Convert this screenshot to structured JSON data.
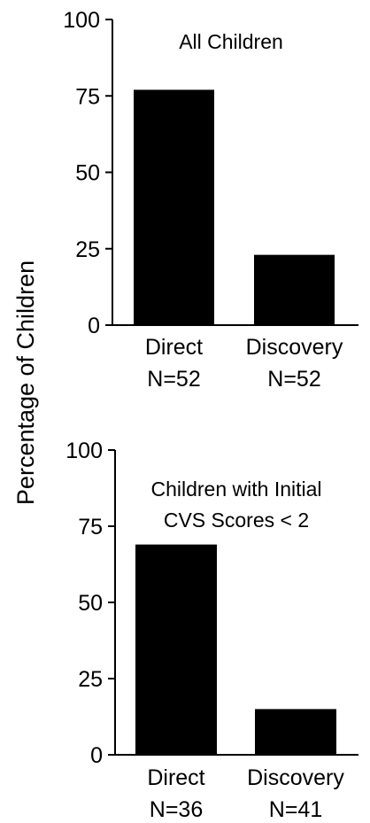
{
  "ylabel": "Percentage of Children",
  "chart_data": [
    {
      "type": "bar",
      "title": "All Children",
      "title_lines": [
        "All Children"
      ],
      "categories": [
        "Direct",
        "Discovery"
      ],
      "n_labels": [
        "N=52",
        "N=52"
      ],
      "values": [
        77,
        23
      ],
      "ylim": [
        0,
        100
      ],
      "yticks": [
        "0",
        "25",
        "50",
        "75",
        "100"
      ],
      "ylabel": "Percentage of Children",
      "grid": false,
      "bar_color": "#000000"
    },
    {
      "type": "bar",
      "title": "Children with Initial CVS Scores < 2",
      "title_lines": [
        "Children with Initial",
        "CVS Scores < 2"
      ],
      "categories": [
        "Direct",
        "Discovery"
      ],
      "n_labels": [
        "N=36",
        "N=41"
      ],
      "values": [
        69,
        15
      ],
      "ylim": [
        0,
        100
      ],
      "yticks": [
        "0",
        "25",
        "50",
        "75",
        "100"
      ],
      "ylabel": "Percentage of Children",
      "grid": false,
      "bar_color": "#000000"
    }
  ]
}
